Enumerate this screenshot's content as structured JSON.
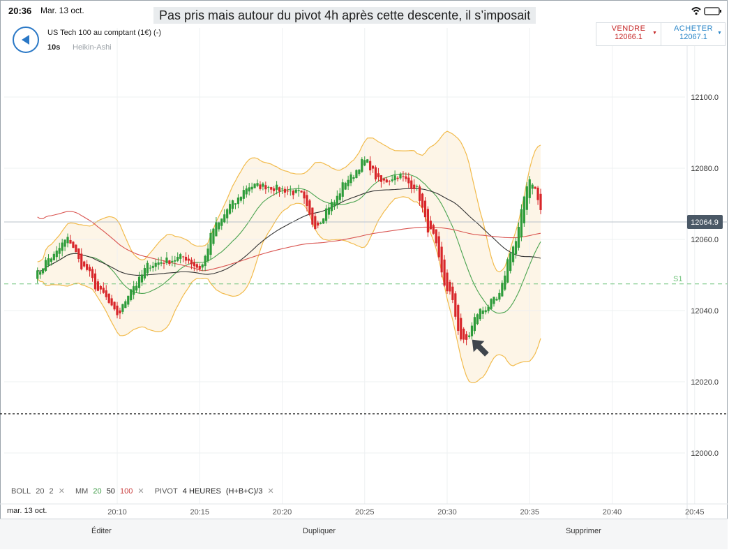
{
  "status": {
    "time": "20:36",
    "date": "Mar. 13 oct."
  },
  "caption": "Pas pris mais autour du pivot 4h après cette descente, il s’imposait",
  "instrument": {
    "name": "US Tech 100 au comptant (1€) (-)",
    "timeframe": "10s",
    "chart_type": "Heikin-Ashi"
  },
  "trade": {
    "sell_label": "VENDRE",
    "sell_price": "12066.1",
    "buy_label": "ACHETER",
    "buy_price": "12067.1",
    "sell_color": "#c62828",
    "buy_color": "#2a86c8"
  },
  "icons": [
    "back-arrow-icon",
    "wifi-icon",
    "battery-icon",
    "caret-down-icon",
    "close-icon",
    "annotation-arrow-icon"
  ],
  "price_axis": {
    "ticks": [
      "12100.0",
      "12080.0",
      "12060.0",
      "12040.0",
      "12020.0",
      "12000.0"
    ],
    "current_price_label": "12064.9",
    "pivot_label": "S1"
  },
  "time_axis": {
    "date_label": "mar. 13 oct.",
    "ticks": [
      "20:10",
      "20:15",
      "20:20",
      "20:25",
      "20:30",
      "20:35",
      "20:40",
      "20:45"
    ]
  },
  "legend": {
    "boll": "BOLL",
    "boll_p1": "20",
    "boll_p2": "2",
    "mm": "MM",
    "mm_p1": "20",
    "mm_p2": "50",
    "mm_p3": "100",
    "pivot": "PIVOT",
    "pivot_period": "4 HEURES",
    "pivot_formula": "(H+B+C)/3",
    "close_symbol": "✕"
  },
  "colors": {
    "bull": "#2e9c3a",
    "bear": "#d8262a",
    "boll_line": "#f2bb4c",
    "boll_fill": "#fdf5e7",
    "mm20": "#4aa34f",
    "mm50": "#333333",
    "mm100": "#d9534f",
    "pivot_s1": "#6fc27a",
    "current_price": "#4a5866"
  },
  "bottom_actions": {
    "edit": "Éditer",
    "duplicate": "Dupliquer",
    "delete": "Supprimer"
  },
  "chart_data": {
    "type": "candlestick",
    "interval": "10s",
    "x_range": [
      "20:05",
      "20:45"
    ],
    "ylim": [
      11990,
      12110
    ],
    "pivot_s1": 12047.5,
    "current_price": 12064.9,
    "dotted_level": 12011,
    "anchors": [
      [
        "20:05",
        12050
      ],
      [
        "20:06",
        12055
      ],
      [
        "20:07",
        12060
      ],
      [
        "20:08",
        12052
      ],
      [
        "20:09",
        12045
      ],
      [
        "20:10",
        12039
      ],
      [
        "20:11",
        12047
      ],
      [
        "20:12",
        12053
      ],
      [
        "20:13",
        12054
      ],
      [
        "20:14",
        12055
      ],
      [
        "20:15",
        12052
      ],
      [
        "20:16",
        12064
      ],
      [
        "20:17",
        12070
      ],
      [
        "20:18",
        12075
      ],
      [
        "20:19",
        12075
      ],
      [
        "20:20",
        12074
      ],
      [
        "20:21",
        12073
      ],
      [
        "20:22",
        12064
      ],
      [
        "20:23",
        12070
      ],
      [
        "20:24",
        12077
      ],
      [
        "20:25",
        12082
      ],
      [
        "20:26",
        12076
      ],
      [
        "20:27",
        12078
      ],
      [
        "20:28",
        12075
      ],
      [
        "20:29",
        12062
      ],
      [
        "20:30",
        12046
      ],
      [
        "20:31",
        12031
      ],
      [
        "20:32",
        12040
      ],
      [
        "20:33",
        12043
      ],
      [
        "20:34",
        12058
      ],
      [
        "20:35",
        12077
      ],
      [
        "20:36",
        12065
      ]
    ],
    "bollinger": {
      "period": 20,
      "stddev": 2
    },
    "moving_averages": [
      20,
      50,
      100
    ]
  }
}
